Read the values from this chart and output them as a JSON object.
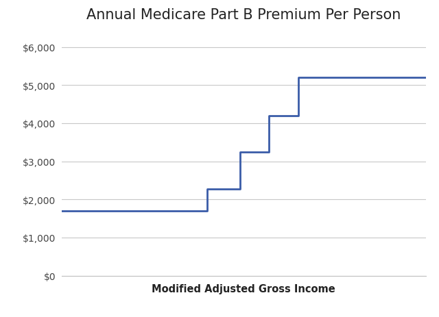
{
  "title": "Annual Medicare Part B Premium Per Person",
  "xlabel": "Modified Adjusted Gross Income",
  "ylabel": "",
  "line_color": "#3A5CA8",
  "line_width": 2.0,
  "background_color": "#ffffff",
  "plot_bg_color": "#ffffff",
  "grid_color": "#c8c8c8",
  "ylim": [
    0,
    6500
  ],
  "yticks": [
    0,
    1000,
    2000,
    3000,
    4000,
    5000,
    6000
  ],
  "ytick_labels": [
    "$0",
    "$1,000",
    "$2,000",
    "$3,000",
    "$4,000",
    "$5,000",
    "$6,000"
  ],
  "step_x": [
    0,
    4.0,
    4.0,
    4.9,
    4.9,
    5.7,
    5.7,
    6.5,
    6.5,
    8.2,
    8.2,
    10.0
  ],
  "step_y": [
    1700,
    1700,
    2270,
    2270,
    3240,
    3240,
    4200,
    4200,
    5200,
    5200,
    5200,
    5200
  ],
  "title_fontsize": 15,
  "xlabel_fontsize": 10.5,
  "title_fontweight": "normal",
  "xlabel_fontweight": "bold"
}
